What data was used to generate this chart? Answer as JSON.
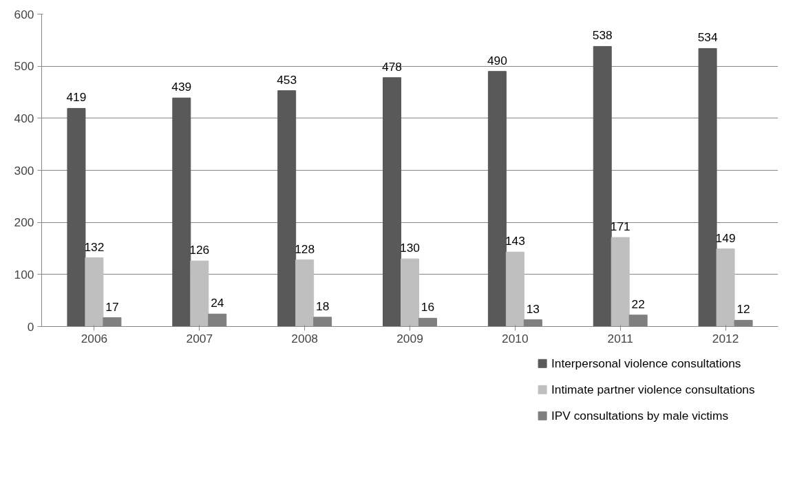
{
  "chart_data": {
    "type": "bar",
    "categories": [
      "2006",
      "2007",
      "2008",
      "2009",
      "2010",
      "2011",
      "2012"
    ],
    "series": [
      {
        "name": "Interpersonal violence consultations",
        "color": "#595959",
        "values": [
          419,
          439,
          453,
          478,
          490,
          538,
          534
        ]
      },
      {
        "name": "Intimate partner violence consultations",
        "color": "#bfbfbf",
        "values": [
          132,
          126,
          128,
          130,
          143,
          171,
          149
        ]
      },
      {
        "name": "IPV consultations by male victims",
        "color": "#7f7f7f",
        "values": [
          17,
          24,
          18,
          16,
          13,
          22,
          12
        ]
      }
    ],
    "ylim": [
      0,
      600
    ],
    "yticks": [
      0,
      100,
      200,
      300,
      400,
      500,
      600
    ],
    "grid": "y",
    "legend": "bottom right",
    "data_labels": true
  }
}
